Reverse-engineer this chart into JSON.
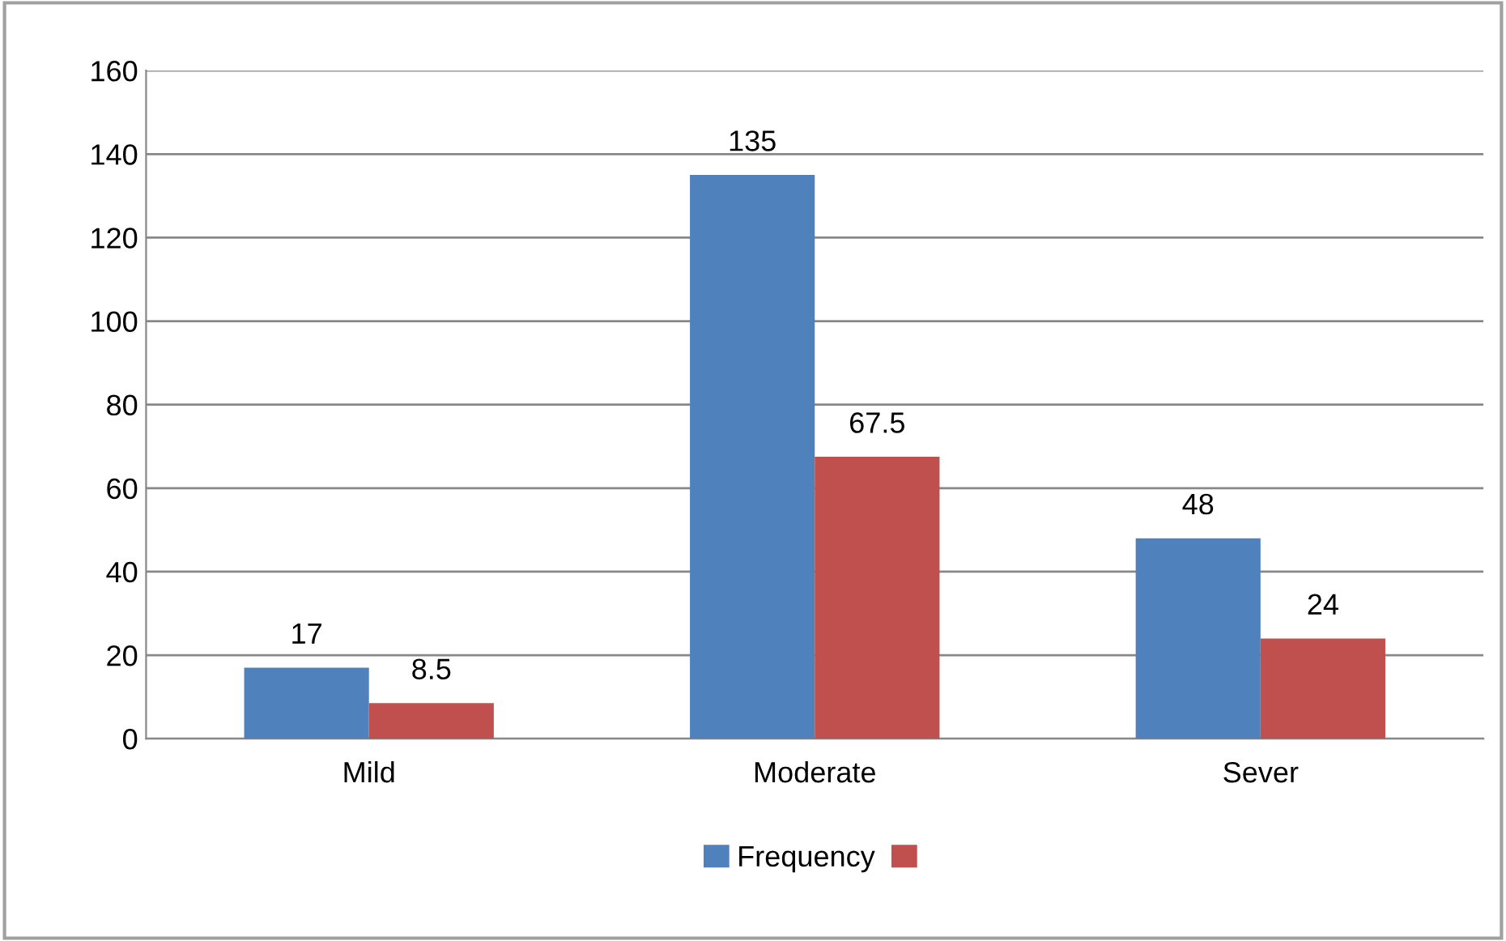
{
  "chart_data": {
    "type": "bar",
    "categories": [
      "Mild",
      "Moderate",
      "Sever"
    ],
    "series": [
      {
        "name": "Frequency",
        "color": "#4f81bd",
        "values": [
          17,
          135,
          48
        ]
      },
      {
        "color": "#c0504d",
        "values": [
          8.5,
          67.5,
          24
        ]
      }
    ],
    "ylim": [
      0,
      160
    ],
    "yticks": [
      0,
      20,
      40,
      60,
      80,
      100,
      120,
      140,
      160
    ],
    "grid": "y",
    "legend": "bottom",
    "data_labels": true
  }
}
